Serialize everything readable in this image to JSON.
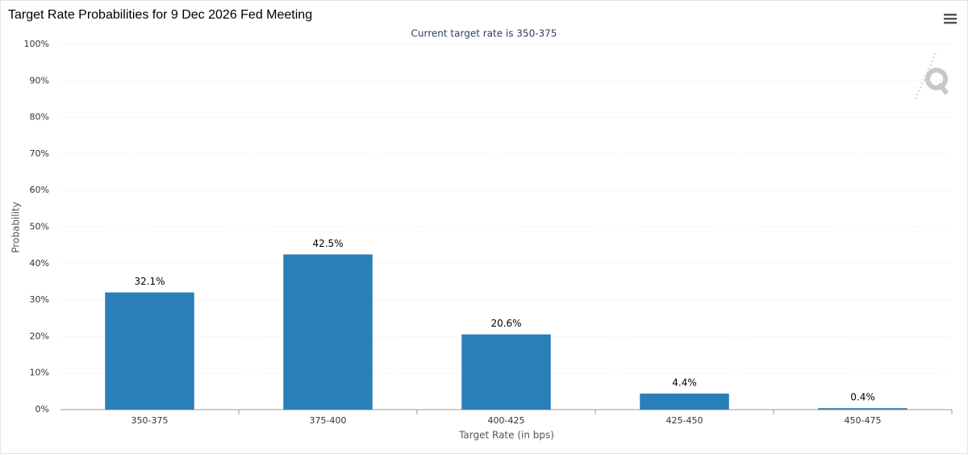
{
  "chart_data": {
    "type": "bar",
    "title": "Target Rate Probabilities for 9 Dec 2026 Fed Meeting",
    "subtitle": "Current target rate is 350-375",
    "y_label": "Probability",
    "x_label": "Target Rate (in bps)",
    "categories": [
      "350-375",
      "375-400",
      "400-425",
      "425-450",
      "450-475"
    ],
    "values": [
      32.1,
      42.5,
      20.6,
      4.4,
      0.4
    ],
    "value_labels": [
      "32.1%",
      "42.5%",
      "20.6%",
      "4.4%",
      "0.4%"
    ],
    "color": "#2b7fb9",
    "ylim": [
      0,
      100
    ],
    "yticks": [
      {
        "value": 0,
        "label": "0%"
      },
      {
        "value": 10,
        "label": "10%"
      },
      {
        "value": 20,
        "label": "20%"
      },
      {
        "value": 30,
        "label": "30%"
      },
      {
        "value": 40,
        "label": "40%"
      },
      {
        "value": 50,
        "label": "50%"
      },
      {
        "value": 60,
        "label": "60%"
      },
      {
        "value": 70,
        "label": "70%"
      },
      {
        "value": 80,
        "label": "80%"
      },
      {
        "value": 90,
        "label": "90%"
      },
      {
        "value": 100,
        "label": "100%"
      }
    ],
    "grid": true
  }
}
